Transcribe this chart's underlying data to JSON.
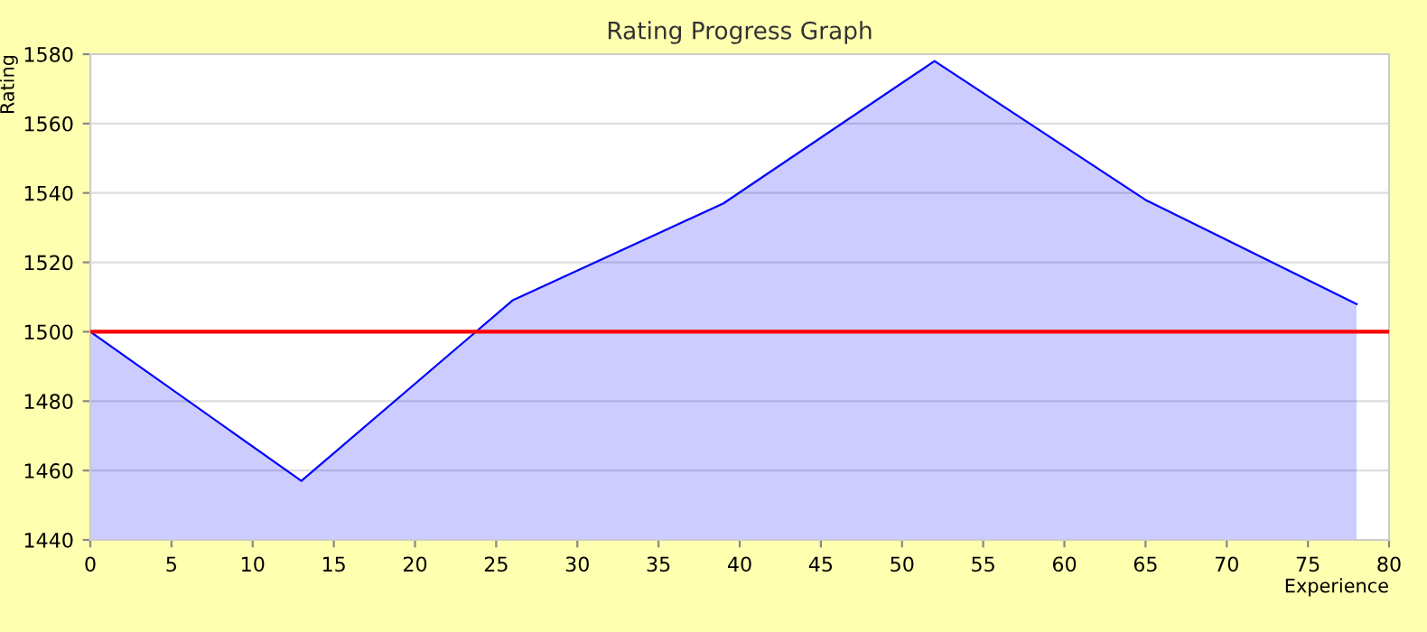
{
  "chart_data": {
    "type": "area",
    "title": "Rating Progress Graph",
    "xlabel": "Experience",
    "ylabel": "Rating",
    "x": [
      0,
      13,
      26,
      39,
      52,
      65,
      78
    ],
    "series": [
      {
        "color": "#0000ff",
        "values": [
          1500,
          1457,
          1509,
          1537,
          1578,
          1538,
          1508
        ]
      }
    ],
    "xlim": [
      0,
      80
    ],
    "xticks": [
      0,
      5,
      10,
      15,
      20,
      25,
      30,
      35,
      40,
      45,
      50,
      55,
      60,
      65,
      70,
      75,
      80
    ],
    "ylim": [
      1440,
      1580
    ],
    "yticks": [
      1440,
      1460,
      1480,
      1500,
      1520,
      1540,
      1560,
      1580
    ],
    "ref_lines": [
      {
        "axis": "y",
        "value": 1500,
        "color": "#ff0000"
      }
    ],
    "grid": "y",
    "legend": false
  }
}
